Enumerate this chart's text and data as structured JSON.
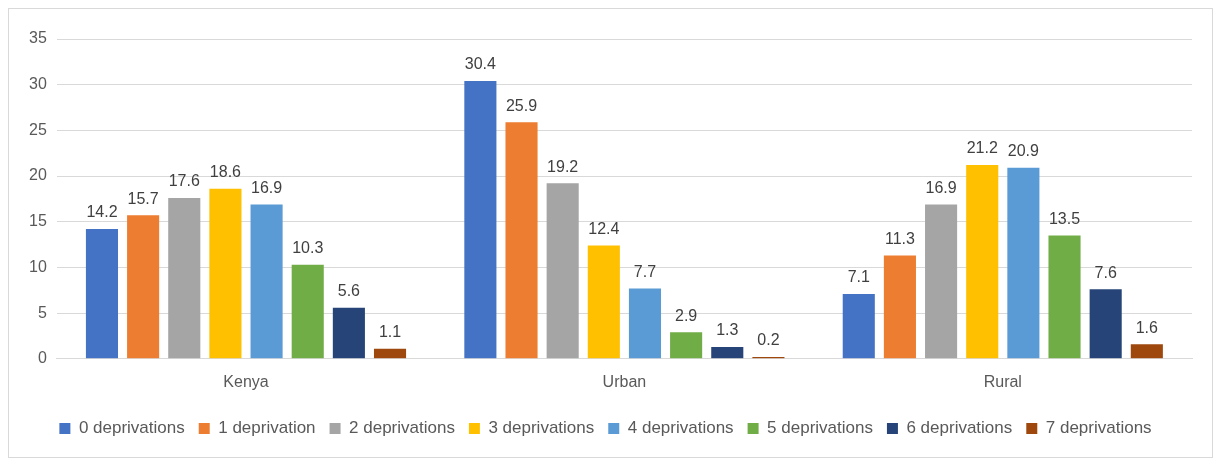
{
  "chart_data": {
    "type": "bar",
    "categories": [
      "Kenya",
      "Urban",
      "Rural"
    ],
    "series": [
      {
        "name": "0 deprivations",
        "color": "#4472c4",
        "values": [
          14.2,
          30.4,
          7.1
        ]
      },
      {
        "name": "1 deprivation",
        "color": "#ed7d31",
        "values": [
          15.7,
          25.9,
          11.3
        ]
      },
      {
        "name": "2 deprivations",
        "color": "#a5a5a5",
        "values": [
          17.6,
          19.2,
          16.9
        ]
      },
      {
        "name": "3 deprivations",
        "color": "#ffc000",
        "values": [
          18.6,
          12.4,
          21.2
        ]
      },
      {
        "name": "4 deprivations",
        "color": "#5b9bd5",
        "values": [
          16.9,
          7.7,
          20.9
        ]
      },
      {
        "name": "5 deprivations",
        "color": "#70ad47",
        "values": [
          10.3,
          2.9,
          13.5
        ]
      },
      {
        "name": "6 deprivations",
        "color": "#264478",
        "values": [
          5.6,
          1.3,
          7.6
        ]
      },
      {
        "name": "7 deprivations",
        "color": "#9e480e",
        "values": [
          1.1,
          0.2,
          1.6
        ]
      }
    ],
    "ylim": [
      0,
      35
    ],
    "yticks": [
      0,
      5,
      10,
      15,
      20,
      25,
      30,
      35
    ],
    "grid": "y",
    "legend": "bottom",
    "data_labels": true
  }
}
